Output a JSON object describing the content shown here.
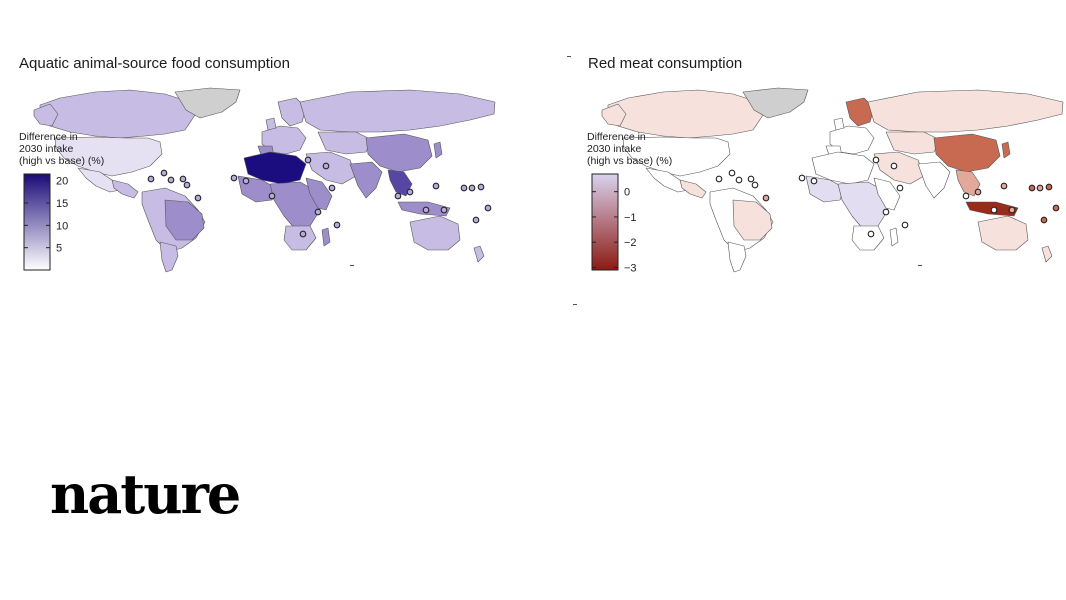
{
  "panels": [
    {
      "title": "Aquatic animal-source food consumption",
      "legend": {
        "title_lines": [
          "Difference in",
          "2030 intake",
          "(high vs base) (%)"
        ],
        "ticks": [
          "20",
          "15",
          "10",
          "5"
        ],
        "tick_values": [
          20,
          15,
          10,
          5
        ],
        "range": [
          0,
          21.5
        ],
        "color_low": "#ffffff",
        "color_high": "#1a0a78"
      },
      "colors": {
        "base": "#c7bce3",
        "mid": "#9d8dca",
        "dark": "#5846a5",
        "extreme": "#1b0d80",
        "light": "#e5e0f2",
        "na": "#cfcfcf",
        "border": "#555555"
      }
    },
    {
      "title": "Red meat consumption",
      "legend": {
        "title_lines": [
          "Difference in",
          "2030 intake",
          "(high vs base) (%)"
        ],
        "ticks": [
          "0",
          "−1",
          "−2",
          "−3"
        ],
        "tick_values": [
          0,
          -1,
          -2,
          -3
        ],
        "range": [
          -3.1,
          0.7
        ],
        "color_low": "#8c1a12",
        "color_high": "#d9d2ee"
      },
      "colors": {
        "base": "#f6e1dc",
        "mid": "#e2a99a",
        "dark": "#c86a52",
        "extreme": "#9a2a1a",
        "light": "#ffffff",
        "blue": "#e3ddf1",
        "na": "#cfcfcf",
        "border": "#555555"
      }
    }
  ],
  "brand": "nature"
}
